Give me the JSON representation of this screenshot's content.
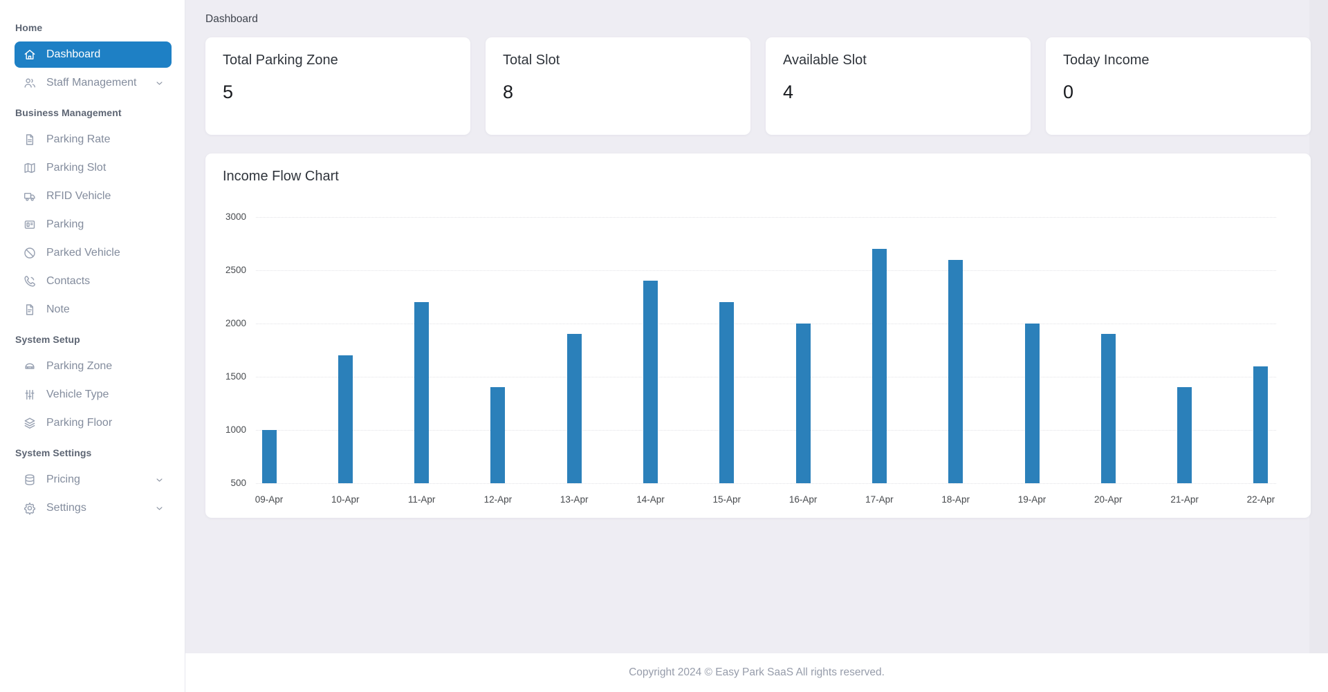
{
  "sidebar": {
    "sections": [
      {
        "header": "Home",
        "items": [
          {
            "label": "Dashboard",
            "icon": "home-icon",
            "active": true,
            "expandable": false
          },
          {
            "label": "Staff Management",
            "icon": "users-icon",
            "active": false,
            "expandable": true
          }
        ]
      },
      {
        "header": "Business Management",
        "items": [
          {
            "label": "Parking Rate",
            "icon": "file-icon",
            "active": false,
            "expandable": false
          },
          {
            "label": "Parking Slot",
            "icon": "map-icon",
            "active": false,
            "expandable": false
          },
          {
            "label": "RFID Vehicle",
            "icon": "truck-icon",
            "active": false,
            "expandable": false
          },
          {
            "label": "Parking",
            "icon": "ticket-icon",
            "active": false,
            "expandable": false
          },
          {
            "label": "Parked Vehicle",
            "icon": "ban-icon",
            "active": false,
            "expandable": false
          },
          {
            "label": "Contacts",
            "icon": "phone-icon",
            "active": false,
            "expandable": false
          },
          {
            "label": "Note",
            "icon": "note-icon",
            "active": false,
            "expandable": false
          }
        ]
      },
      {
        "header": "System Setup",
        "items": [
          {
            "label": "Parking Zone",
            "icon": "car-icon",
            "active": false,
            "expandable": false
          },
          {
            "label": "Vehicle Type",
            "icon": "sliders-icon",
            "active": false,
            "expandable": false
          },
          {
            "label": "Parking Floor",
            "icon": "layers-icon",
            "active": false,
            "expandable": false
          }
        ]
      },
      {
        "header": "System Settings",
        "items": [
          {
            "label": "Pricing",
            "icon": "database-icon",
            "active": false,
            "expandable": true
          },
          {
            "label": "Settings",
            "icon": "gear-icon",
            "active": false,
            "expandable": true
          }
        ]
      }
    ]
  },
  "breadcrumb": "Dashboard",
  "stat_cards": [
    {
      "title": "Total Parking Zone",
      "value": "5"
    },
    {
      "title": "Total Slot",
      "value": "8"
    },
    {
      "title": "Available Slot",
      "value": "4"
    },
    {
      "title": "Today Income",
      "value": "0"
    }
  ],
  "chart_data": {
    "type": "bar",
    "title": "Income Flow Chart",
    "categories": [
      "09-Apr",
      "10-Apr",
      "11-Apr",
      "12-Apr",
      "13-Apr",
      "14-Apr",
      "15-Apr",
      "16-Apr",
      "17-Apr",
      "18-Apr",
      "19-Apr",
      "20-Apr",
      "21-Apr",
      "22-Apr"
    ],
    "values": [
      1000,
      1700,
      2200,
      1400,
      1900,
      2400,
      2200,
      2000,
      2700,
      2600,
      2000,
      1900,
      1400,
      1600
    ],
    "xlabel": "",
    "ylabel": "",
    "ylim": [
      500,
      3000
    ],
    "ytick_step": 500,
    "bar_color": "#2b80ba",
    "grid": "horizontal-dotted",
    "legend": "none"
  },
  "footer": {
    "copyright": "Copyright 2024 © Easy Park SaaS All rights reserved."
  },
  "colors": {
    "accent": "#1e80c5",
    "bar": "#2b80ba",
    "main_bg": "#eeedf3",
    "sidebar_bg": "#ffffff"
  }
}
